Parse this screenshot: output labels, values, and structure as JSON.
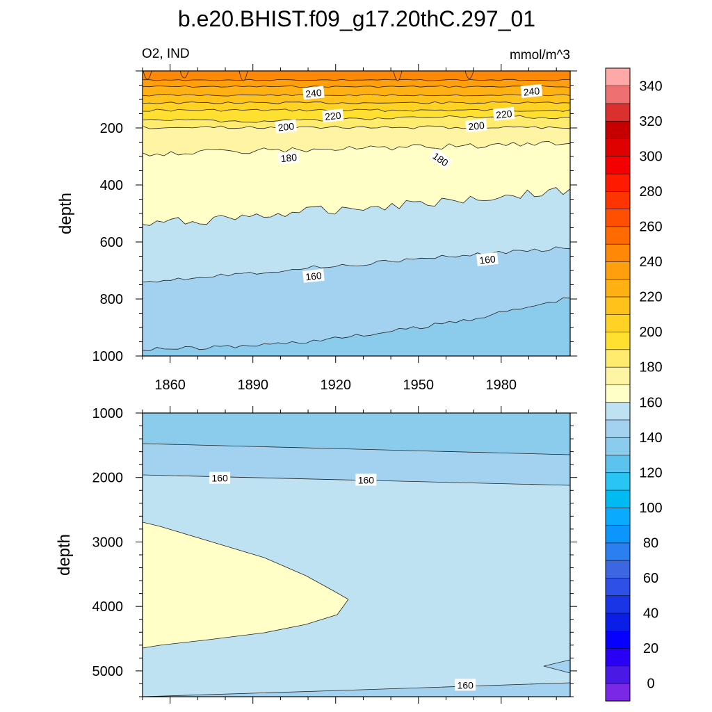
{
  "title": "b.e20.BHIST.f09_g17.20thC.297_01",
  "left_subtitle": "O2, IND",
  "right_subtitle": "mmol/m^3",
  "chart_data": [
    {
      "type": "heatmap",
      "panel": "upper",
      "ylabel": "depth",
      "xlim": [
        1850,
        2005
      ],
      "ylim": [
        0,
        1000
      ],
      "y_inverted": true,
      "x_ticks": [
        1860,
        1890,
        1920,
        1950,
        1980
      ],
      "y_ticks": [
        200,
        400,
        600,
        800,
        1000
      ],
      "contour_labels": [
        {
          "value": "240",
          "x": 1912,
          "y": 78
        },
        {
          "value": "240",
          "x": 1991,
          "y": 72
        },
        {
          "value": "220",
          "x": 1919,
          "y": 158
        },
        {
          "value": "220",
          "x": 1981,
          "y": 152
        },
        {
          "value": "200",
          "x": 1902,
          "y": 196
        },
        {
          "value": "200",
          "x": 1971,
          "y": 193
        },
        {
          "value": "180",
          "x": 1903,
          "y": 305
        },
        {
          "value": "180",
          "x": 1958,
          "y": 310
        },
        {
          "value": "160",
          "x": 1912,
          "y": 720
        },
        {
          "value": "160",
          "x": 1975,
          "y": 662
        }
      ]
    },
    {
      "type": "heatmap",
      "panel": "lower",
      "ylabel": "depth",
      "xlim": [
        1850,
        2005
      ],
      "ylim": [
        1000,
        5400
      ],
      "y_inverted": true,
      "y_ticks": [
        1000,
        2000,
        3000,
        4000,
        5000
      ],
      "contour_labels": [
        {
          "value": "160",
          "x": 1878,
          "y": 2010
        },
        {
          "value": "160",
          "x": 1931,
          "y": 2040
        },
        {
          "value": "160",
          "x": 1967,
          "y": 5220
        }
      ]
    }
  ],
  "colorbar": {
    "labels": [
      "0",
      "20",
      "40",
      "60",
      "80",
      "100",
      "120",
      "140",
      "160",
      "180",
      "200",
      "220",
      "240",
      "260",
      "280",
      "300",
      "320",
      "340"
    ],
    "colors": [
      "#7a27e6",
      "#4b19e6",
      "#2a00f5",
      "#0500ff",
      "#0a1ee8",
      "#1a35e6",
      "#2e50e6",
      "#3c66e2",
      "#2c7ff0",
      "#0c96fb",
      "#0aabff",
      "#00bbf2",
      "#29c6f5",
      "#5bc3ee",
      "#8bcbec",
      "#a2d2f0",
      "#bfe2f2",
      "#ffffc7",
      "#fff4a4",
      "#ffec6e",
      "#ffe030",
      "#ffd223",
      "#ffc21b",
      "#ffb114",
      "#ff9f0d",
      "#ff8806",
      "#ff6b00",
      "#ff4f00",
      "#ff3500",
      "#ff1a00",
      "#f40000",
      "#df0000",
      "#c60000",
      "#db3030",
      "#ee7070",
      "#ffa8a8"
    ]
  }
}
